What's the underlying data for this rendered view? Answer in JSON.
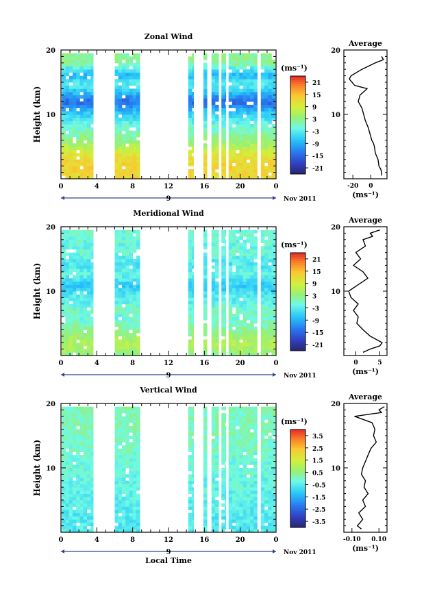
{
  "chart_data": [
    {
      "type": "heatmap",
      "title": "Zonal Wind",
      "ylabel": "Height (km)",
      "ylim": [
        0,
        20
      ],
      "xlim": [
        0,
        24
      ],
      "x_ticks": [
        "0",
        "4",
        "8",
        "12",
        "16",
        "20",
        "0"
      ],
      "y_ticks": [
        "10",
        "20"
      ],
      "day_label": "9",
      "date_label": "Nov 2011",
      "unit_label": "(ms⁻¹)",
      "colorbar": {
        "ticks": [
          "21",
          "15",
          "9",
          "3",
          "-3",
          "-9",
          "-15",
          "-21"
        ],
        "range": [
          -24,
          24
        ]
      },
      "data_segments": [
        [
          0.1,
          3.6
        ],
        [
          6.0,
          8.8
        ],
        [
          14.2,
          14.8
        ],
        [
          15.9,
          16.3
        ],
        [
          16.8,
          17.6
        ],
        [
          17.9,
          18.4
        ],
        [
          18.7,
          21.9
        ],
        [
          22.3,
          23.9
        ]
      ],
      "levels": [
        [
          0,
          12
        ],
        [
          2,
          13
        ],
        [
          3,
          12
        ],
        [
          4,
          10
        ],
        [
          5,
          6
        ],
        [
          6,
          3
        ],
        [
          7,
          1
        ],
        [
          8,
          -1
        ],
        [
          9,
          -3
        ],
        [
          10,
          -6
        ],
        [
          11,
          -10
        ],
        [
          12,
          -15
        ],
        [
          13,
          -10
        ],
        [
          14,
          -5
        ],
        [
          15,
          -3
        ],
        [
          16,
          -9
        ],
        [
          17,
          -4
        ],
        [
          18,
          2
        ]
      ],
      "profile": {
        "title": "Average",
        "xlabel": "(ms⁻¹)",
        "xlim": [
          -30,
          18
        ],
        "x_ticks": [
          "-20",
          "0"
        ],
        "y_ticks": [
          "10",
          "20"
        ],
        "points": [
          [
            12,
            0.5
          ],
          [
            12,
            1
          ],
          [
            11,
            1.5
          ],
          [
            9,
            2
          ],
          [
            8,
            3
          ],
          [
            5,
            4
          ],
          [
            4,
            5
          ],
          [
            3,
            5.5
          ],
          [
            1,
            6
          ],
          [
            -1,
            7
          ],
          [
            -3,
            8
          ],
          [
            -6,
            9
          ],
          [
            -8,
            10
          ],
          [
            -10,
            11
          ],
          [
            -14,
            12
          ],
          [
            -12,
            13
          ],
          [
            -4,
            14
          ],
          [
            -18,
            14.5
          ],
          [
            -24,
            15.5
          ],
          [
            -22,
            16
          ],
          [
            -10,
            17
          ],
          [
            5,
            18
          ],
          [
            14,
            18.5
          ],
          [
            12,
            19
          ]
        ]
      }
    },
    {
      "type": "heatmap",
      "title": "Meridional Wind",
      "ylabel": "Height (km)",
      "ylim": [
        0,
        20
      ],
      "xlim": [
        0,
        24
      ],
      "x_ticks": [
        "0",
        "4",
        "8",
        "12",
        "16",
        "20",
        "0"
      ],
      "y_ticks": [
        "10",
        "20"
      ],
      "day_label": "9",
      "date_label": "Nov 2011",
      "unit_label": "(ms⁻¹)",
      "colorbar": {
        "ticks": [
          "21",
          "15",
          "9",
          "3",
          "-3",
          "-9",
          "-15",
          "-21"
        ],
        "range": [
          -24,
          24
        ]
      },
      "data_segments": [
        [
          0.1,
          3.6
        ],
        [
          6.0,
          8.8
        ],
        [
          14.2,
          14.8
        ],
        [
          15.9,
          16.3
        ],
        [
          16.8,
          17.6
        ],
        [
          17.9,
          18.4
        ],
        [
          18.7,
          21.9
        ],
        [
          22.3,
          23.9
        ]
      ],
      "levels": [
        [
          0,
          2
        ],
        [
          1,
          5
        ],
        [
          2,
          6
        ],
        [
          3,
          4
        ],
        [
          4,
          2
        ],
        [
          5,
          0
        ],
        [
          6,
          -1
        ],
        [
          7,
          0
        ],
        [
          8,
          -2
        ],
        [
          9,
          -3
        ],
        [
          10,
          -5
        ],
        [
          11,
          -7
        ],
        [
          12,
          -3
        ],
        [
          13,
          -2
        ],
        [
          14,
          -4
        ],
        [
          15,
          -3
        ],
        [
          16,
          -1
        ],
        [
          17,
          -2
        ],
        [
          18,
          -1
        ]
      ],
      "profile": {
        "title": "Average",
        "xlabel": "(ms⁻¹)",
        "xlim": [
          -2.5,
          6.5
        ],
        "x_ticks": [
          "0",
          "5"
        ],
        "y_ticks": [
          "10",
          "20"
        ],
        "points": [
          [
            1.5,
            0.5
          ],
          [
            3,
            1
          ],
          [
            5,
            1.5
          ],
          [
            5.5,
            2
          ],
          [
            3,
            3
          ],
          [
            1.5,
            4
          ],
          [
            0.2,
            5
          ],
          [
            0.5,
            6
          ],
          [
            -0.5,
            7
          ],
          [
            0.5,
            8
          ],
          [
            -1,
            9
          ],
          [
            -1.5,
            10
          ],
          [
            0.5,
            11
          ],
          [
            2.5,
            12
          ],
          [
            1.5,
            13
          ],
          [
            -0.5,
            14
          ],
          [
            1,
            15
          ],
          [
            0,
            16
          ],
          [
            2,
            17
          ],
          [
            1.5,
            18
          ],
          [
            3.5,
            18.5
          ],
          [
            3,
            19
          ],
          [
            5,
            19.5
          ]
        ]
      }
    },
    {
      "type": "heatmap",
      "title": "Vertical Wind",
      "ylabel": "Height (km)",
      "xlabel": "Local Time",
      "ylim": [
        0,
        20
      ],
      "xlim": [
        0,
        24
      ],
      "x_ticks": [
        "0",
        "4",
        "8",
        "12",
        "16",
        "20",
        "0"
      ],
      "y_ticks": [
        "10",
        "20"
      ],
      "day_label": "9",
      "date_label": "Nov 2011",
      "unit_label": "(ms⁻¹)",
      "colorbar": {
        "ticks": [
          "3.5",
          "2.5",
          "1.5",
          "0.5",
          "-0.5",
          "-1.5",
          "-2.5",
          "-3.5"
        ],
        "range": [
          -4,
          4
        ]
      },
      "data_segments": [
        [
          0.1,
          3.6
        ],
        [
          6.0,
          8.8
        ],
        [
          14.2,
          14.8
        ],
        [
          15.9,
          16.3
        ],
        [
          16.8,
          17.6
        ],
        [
          17.9,
          18.4
        ],
        [
          18.7,
          21.9
        ],
        [
          22.3,
          23.9
        ]
      ],
      "levels": [
        [
          0,
          -0.6
        ],
        [
          2,
          -0.6
        ],
        [
          4,
          -0.5
        ],
        [
          6,
          -0.4
        ],
        [
          8,
          -0.3
        ],
        [
          10,
          -0.2
        ],
        [
          12,
          -0.1
        ],
        [
          14,
          0.0
        ],
        [
          16,
          0.1
        ],
        [
          18,
          0.1
        ],
        [
          19.5,
          0.1
        ]
      ],
      "profile": {
        "title": "Average",
        "xlabel": "(ms⁻¹)",
        "xlim": [
          -0.16,
          0.16
        ],
        "x_ticks": [
          "-0.10",
          "0.10"
        ],
        "y_ticks": [
          "10",
          "20"
        ],
        "points": [
          [
            -0.03,
            0.5
          ],
          [
            -0.06,
            1
          ],
          [
            -0.02,
            2
          ],
          [
            -0.05,
            3
          ],
          [
            0.0,
            4
          ],
          [
            -0.02,
            5
          ],
          [
            0.02,
            6
          ],
          [
            -0.01,
            7
          ],
          [
            0.0,
            8
          ],
          [
            -0.03,
            9
          ],
          [
            -0.02,
            10
          ],
          [
            0.0,
            11
          ],
          [
            0.02,
            12
          ],
          [
            0.04,
            13
          ],
          [
            0.08,
            14
          ],
          [
            0.06,
            15
          ],
          [
            0.07,
            16
          ],
          [
            0.05,
            17
          ],
          [
            -0.08,
            18
          ],
          [
            0.12,
            18.6
          ],
          [
            0.1,
            19
          ],
          [
            0.14,
            19.5
          ]
        ]
      }
    }
  ]
}
